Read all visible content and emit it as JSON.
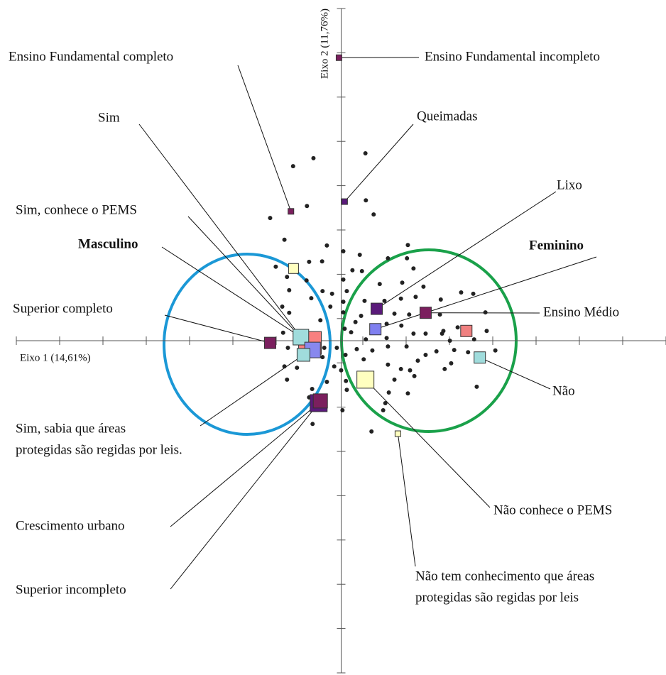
{
  "chart_data": {
    "type": "scatter",
    "x_label": "Eixo 1 (14,61%)",
    "y_label": "Eixo 2 (11,76%)",
    "xlim": [
      -7.5,
      7.5
    ],
    "ylim": [
      -7.5,
      7.5
    ],
    "xticks": [
      -7.5,
      -6.5,
      -5.5,
      -4.5,
      -3.5,
      -2.5,
      -1.5,
      -0.5,
      0.5,
      1.5,
      2.5,
      3.5,
      4.5,
      5.5,
      6.5,
      7.5
    ],
    "yticks": [
      -7.5,
      -6.5,
      -5.5,
      -4.5,
      -3.5,
      -2.5,
      -1.5,
      -0.5,
      0.5,
      1.5,
      2.5,
      3.5,
      4.5,
      5.5,
      6.5,
      7.5
    ],
    "dot_color": "#222222",
    "dots": {
      "x": [
        -0.64,
        0.56,
        -1.11,
        -0.79,
        0.57,
        0.75,
        -1.64,
        -1.31,
        -0.33,
        0.05,
        0.43,
        1.54,
        1.08,
        1.52,
        -1.51,
        -0.74,
        -0.44,
        0.26,
        0.48,
        1.67,
        0.05,
        -1.25,
        -0.8,
        -0.43,
        -0.21,
        0.13,
        0.89,
        1.41,
        1.9,
        2.3,
        2.77,
        3.05,
        1.72,
        -1.2,
        -1.36,
        -0.69,
        -0.25,
        0.54,
        1.0,
        1.38,
        0.05,
        -1.2,
        0.05,
        0.46,
        1.23,
        1.57,
        2.28,
        3.33,
        -0.48,
        0.33,
        1.05,
        1.39,
        2.36,
        2.69,
        3.36,
        -1.34,
        -1.07,
        0.08,
        0.23,
        1.05,
        0.57,
        1.67,
        1.95,
        2.33,
        2.51,
        3.07,
        3.56,
        -1.23,
        -0.39,
        -0.1,
        0.36,
        0.72,
        1.08,
        1.51,
        1.95,
        2.2,
        2.61,
        2.93,
        -0.43,
        0.1,
        0.52,
        1.77,
        2.54,
        -1.31,
        -1.02,
        -0.16,
        0.0,
        1.08,
        1.38,
        1.59,
        2.39,
        -1.25,
        0.11,
        -0.33,
        1.23,
        1.69,
        -0.67,
        0.13,
        1.1,
        1.54,
        3.13,
        -0.74,
        1.02,
        0.03,
        0.97,
        -0.66,
        0.7
      ],
      "y": [
        4.12,
        4.23,
        3.94,
        3.04,
        3.17,
        2.85,
        2.77,
        2.28,
        2.15,
        2.02,
        1.94,
        2.16,
        1.86,
        1.86,
        1.67,
        1.78,
        1.79,
        1.59,
        1.57,
        1.63,
        1.38,
        1.44,
        1.36,
        1.12,
        1.06,
        1.12,
        1.28,
        1.31,
        1.22,
        0.93,
        1.09,
        1.06,
        0.99,
        1.14,
        0.77,
        0.96,
        0.77,
        0.9,
        0.9,
        0.95,
        0.88,
        0.63,
        0.64,
        0.56,
        0.61,
        0.59,
        0.59,
        0.64,
        0.46,
        0.42,
        0.38,
        0.34,
        0.22,
        0.3,
        0.22,
        0.18,
        0.16,
        0.27,
        0.19,
        0.06,
        0.03,
        0.16,
        0.16,
        0.16,
        0.0,
        0.03,
        -0.22,
        -0.16,
        -0.16,
        -0.16,
        -0.19,
        -0.22,
        -0.13,
        -0.13,
        -0.32,
        -0.24,
        -0.21,
        -0.26,
        -0.37,
        -0.32,
        -0.42,
        -0.45,
        -0.51,
        -0.58,
        -0.61,
        -0.58,
        -0.67,
        -0.54,
        -0.64,
        -0.67,
        -0.64,
        -0.88,
        -0.91,
        -0.93,
        -0.88,
        -0.8,
        -1.09,
        -1.11,
        -1.17,
        -1.19,
        -1.04,
        -1.28,
        -1.41,
        -1.57,
        -1.57,
        -1.88,
        -2.05
      ]
    },
    "points": [
      {
        "label": [
          "Ensino Fundamental incompleto"
        ],
        "x": -0.05,
        "y": 6.39,
        "size": 8,
        "color": "#7b1f5e"
      },
      {
        "label": [
          "Ensino Fundamental completo"
        ],
        "x": -1.16,
        "y": 2.92,
        "size": 8,
        "color": "#7b1f5e"
      },
      {
        "label": [
          "Queimadas"
        ],
        "x": 0.08,
        "y": 3.14,
        "size": 8,
        "color": "#5a1a7a"
      },
      {
        "label": [
          "Sim"
        ],
        "x": -0.93,
        "y": 0.08,
        "size": 22,
        "color": "#a0dcdc"
      },
      {
        "label": [
          "Sim, conhece o PEMS"
        ],
        "x": -0.66,
        "y": -0.21,
        "size": 22,
        "color": "#8888ee"
      },
      {
        "label": [
          "Masculino"
        ],
        "x": -0.72,
        "y": -0.05,
        "size": 32,
        "color": "#f88080",
        "bold": true
      },
      {
        "label": [
          "Sim, sabia que áreas",
          "protegidas são regidas por leis."
        ],
        "x": -0.87,
        "y": -0.32,
        "size": 18,
        "color": "#a0dcdc"
      },
      {
        "label": [
          "Superior completo"
        ],
        "x": -1.64,
        "y": -0.05,
        "size": 16,
        "color": "#7b1f5e"
      },
      {
        "label": [
          "Lixo"
        ],
        "x": 0.82,
        "y": 0.72,
        "size": 16,
        "color": "#5a1a7a"
      },
      {
        "label": [
          "Feminino"
        ],
        "x": 0.79,
        "y": 0.26,
        "size": 16,
        "color": "#8080f0",
        "bold": true
      },
      {
        "label": [
          "Ensino Médio"
        ],
        "x": 1.95,
        "y": 0.63,
        "size": 16,
        "color": "#7b1f5e"
      },
      {
        "label": [
          "Não"
        ],
        "x": 3.2,
        "y": -0.38,
        "size": 16,
        "color": "#a0dcdc"
      },
      {
        "label": [
          "Não conhece o PEMS"
        ],
        "x": 0.56,
        "y": -0.88,
        "size": 24,
        "color": "#ffffc0"
      },
      {
        "label": [
          "Não tem conhecimento que áreas",
          "protegidas são regidas por leis"
        ],
        "x": 1.31,
        "y": -2.1,
        "size": 8,
        "color": "#ffffc0"
      },
      {
        "label": [
          "Crescimento urbano"
        ],
        "x": -0.52,
        "y": -1.41,
        "size": 24,
        "color": "#5a1a7a"
      },
      {
        "label": [
          "Superior incompleto"
        ],
        "x": -0.48,
        "y": -1.36,
        "size": 20,
        "color": "#7b1f5e"
      },
      {
        "label": null,
        "x": -1.1,
        "y": 1.63,
        "size": 14,
        "color": "#ffffc0"
      },
      {
        "label": null,
        "x": 2.89,
        "y": 0.22,
        "size": 16,
        "color": "#f08080"
      }
    ]
  }
}
